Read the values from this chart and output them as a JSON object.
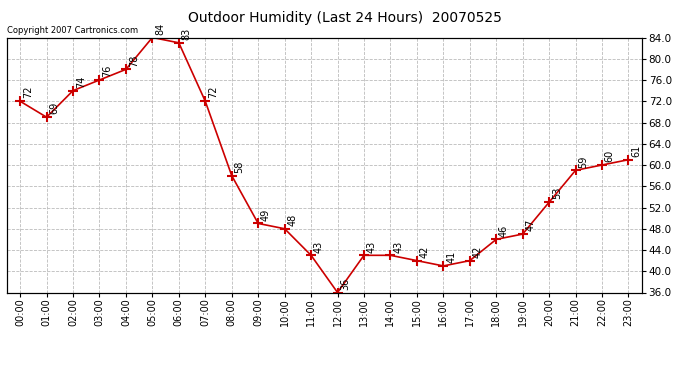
{
  "title": "Outdoor Humidity (Last 24 Hours)  20070525",
  "copyright": "Copyright 2007 Cartronics.com",
  "hours": [
    "00:00",
    "01:00",
    "02:00",
    "03:00",
    "04:00",
    "05:00",
    "06:00",
    "07:00",
    "08:00",
    "09:00",
    "10:00",
    "11:00",
    "12:00",
    "13:00",
    "14:00",
    "15:00",
    "16:00",
    "17:00",
    "18:00",
    "19:00",
    "20:00",
    "21:00",
    "22:00",
    "23:00"
  ],
  "values": [
    72,
    69,
    74,
    76,
    78,
    84,
    83,
    72,
    58,
    49,
    48,
    43,
    36,
    43,
    43,
    42,
    41,
    42,
    46,
    47,
    53,
    59,
    60,
    61
  ],
  "line_color": "#cc0000",
  "marker": "+",
  "marker_color": "#cc0000",
  "bg_color": "#ffffff",
  "grid_color": "#bbbbbb",
  "ylim_min": 36.0,
  "ylim_max": 84.0,
  "yticks": [
    36.0,
    40.0,
    44.0,
    48.0,
    52.0,
    56.0,
    60.0,
    64.0,
    68.0,
    72.0,
    76.0,
    80.0,
    84.0
  ],
  "label_fontsize": 7,
  "title_fontsize": 10,
  "copyright_fontsize": 6
}
